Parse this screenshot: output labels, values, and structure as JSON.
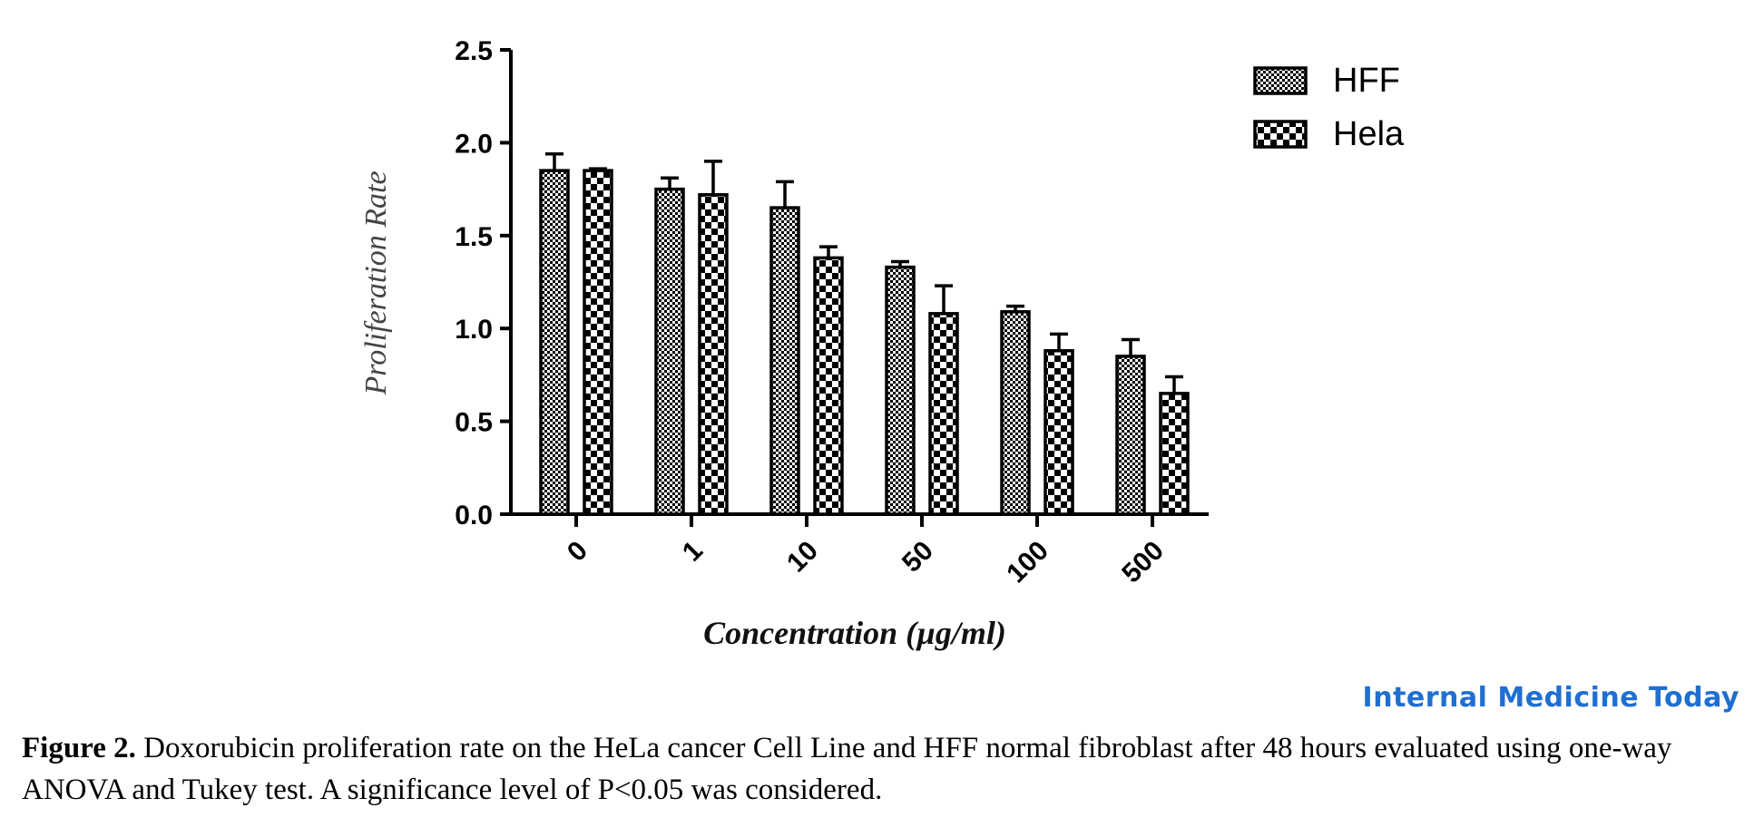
{
  "chart_data": {
    "type": "bar",
    "categories": [
      "0",
      "1",
      "10",
      "50",
      "100",
      "500"
    ],
    "series": [
      {
        "name": "HFF",
        "values": [
          1.85,
          1.75,
          1.65,
          1.33,
          1.09,
          0.85
        ],
        "errors": [
          0.09,
          0.06,
          0.14,
          0.03,
          0.03,
          0.09
        ],
        "pattern": "fine-checker"
      },
      {
        "name": "Hela",
        "values": [
          1.85,
          1.72,
          1.38,
          1.08,
          0.88,
          0.65
        ],
        "errors": [
          0.01,
          0.18,
          0.06,
          0.15,
          0.09,
          0.09
        ],
        "pattern": "coarse-checker"
      }
    ],
    "xlabel": "Concentration (µg/ml)",
    "ylabel": "Proliferation Rate",
    "ylim": [
      0,
      2.5
    ],
    "yticks": [
      "0.0",
      "0.5",
      "1.0",
      "1.5",
      "2.0",
      "2.5"
    ],
    "ytick_values": [
      0,
      0.5,
      1.0,
      1.5,
      2.0,
      2.5
    ],
    "legend_position": "top-right",
    "grid": false,
    "error_bars": "upper only"
  },
  "watermark": "Internal Medicine Today",
  "caption": {
    "label": "Figure 2.",
    "text": " Doxorubicin proliferation rate on the HeLa cancer Cell Line and HFF normal fibroblast after 48 hours evaluated using one-way ANOVA and Tukey test. A significance level of P<0.05 was considered."
  }
}
